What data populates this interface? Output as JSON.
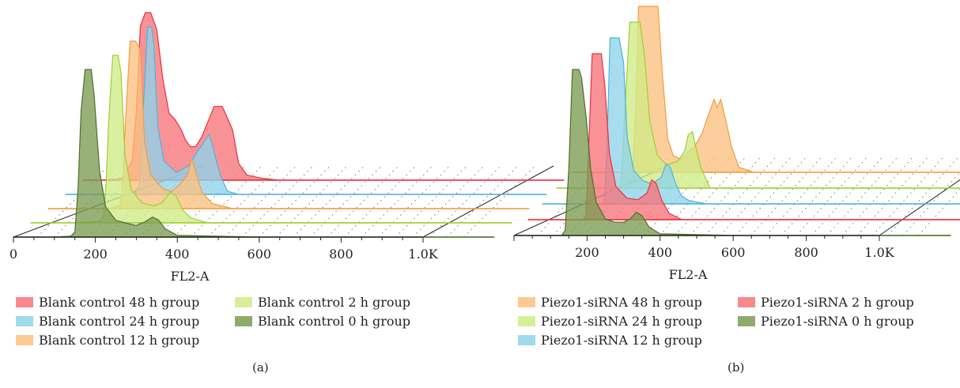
{
  "chart_data": [
    {
      "type": "area",
      "panel_label": "(a)",
      "xlabel": "FL2-A",
      "x_ticks": [
        "0",
        "200",
        "400",
        "600",
        "800",
        "1.0K"
      ],
      "x_tick_values": [
        0,
        200,
        400,
        600,
        800,
        1000
      ],
      "xlim": [
        0,
        1000
      ],
      "layout": "3d-stacked-offset",
      "series": [
        {
          "name": "Blank control 48 h group",
          "color": "#f7737a",
          "stroke": "#e8313b",
          "x": [
            0,
            40,
            80,
            100,
            120,
            130,
            140,
            152,
            165,
            180,
            195,
            210,
            225,
            240,
            250,
            262,
            275,
            290,
            300,
            320,
            340,
            365,
            380,
            400,
            440,
            480,
            520,
            560,
            600,
            700,
            800,
            1000
          ],
          "y": [
            0,
            0,
            0.5,
            2,
            12,
            40,
            92,
            100,
            100,
            90,
            60,
            40,
            36,
            30,
            24,
            20,
            20,
            26,
            32,
            44,
            44,
            30,
            10,
            3,
            1,
            0,
            0,
            0,
            0,
            0,
            0,
            0
          ]
        },
        {
          "name": "Blank control 24 h group",
          "color": "#8ed3ea",
          "stroke": "#4fb3d8",
          "x": [
            0,
            80,
            150,
            170,
            180,
            185,
            200,
            210,
            215,
            225,
            240,
            270,
            300,
            320,
            340,
            350,
            360,
            370,
            380,
            395,
            420,
            460,
            600,
            800,
            1000
          ],
          "y": [
            0,
            0,
            0,
            1,
            5,
            30,
            100,
            100,
            90,
            40,
            20,
            13,
            17,
            25,
            32,
            36,
            28,
            18,
            10,
            2,
            0,
            0,
            0,
            0,
            0
          ]
        },
        {
          "name": "Blank control 12 h group",
          "color": "#fbc080",
          "stroke": "#f59b3c",
          "x": [
            0,
            80,
            150,
            175,
            182,
            188,
            200,
            213,
            225,
            235,
            250,
            280,
            300,
            320,
            340,
            350,
            360,
            375,
            400,
            450,
            600,
            800,
            1000
          ],
          "y": [
            0,
            0,
            0,
            2,
            15,
            50,
            100,
            100,
            95,
            40,
            20,
            12,
            10,
            14,
            20,
            30,
            22,
            10,
            3,
            0,
            0,
            0,
            0
          ]
        },
        {
          "name": "Blank control 2 h group",
          "color": "#d0ec86",
          "stroke": "#9fce33",
          "x": [
            0,
            100,
            170,
            178,
            184,
            190,
            200,
            213,
            220,
            230,
            245,
            270,
            300,
            320,
            340,
            355,
            370,
            390,
            430,
            600,
            800,
            1000
          ],
          "y": [
            0,
            0,
            1,
            5,
            25,
            60,
            100,
            100,
            90,
            40,
            20,
            12,
            10,
            12,
            18,
            16,
            8,
            3,
            0,
            0,
            0,
            0
          ]
        },
        {
          "name": "Blank control 0 h group",
          "color": "#7b9b52",
          "stroke": "#4f6e2a",
          "x": [
            0,
            100,
            140,
            150,
            158,
            165,
            175,
            190,
            197,
            210,
            225,
            250,
            280,
            300,
            320,
            340,
            355,
            370,
            400,
            600,
            800,
            1000
          ],
          "y": [
            0,
            0,
            0.5,
            3,
            30,
            75,
            100,
            100,
            85,
            40,
            18,
            10,
            8,
            7,
            9,
            12,
            10,
            5,
            1,
            0,
            0,
            0
          ]
        }
      ]
    },
    {
      "type": "area",
      "panel_label": "(b)",
      "xlabel": "FL2-A",
      "x_ticks": [
        "200",
        "400",
        "600",
        "800",
        "1.0K"
      ],
      "x_tick_values": [
        200,
        400,
        600,
        800,
        1000
      ],
      "xlim": [
        0,
        1000
      ],
      "layout": "3d-stacked-offset",
      "series": [
        {
          "name": "Piezo1-siRNA 48 h group",
          "color": "#fbc080",
          "stroke": "#f59b3c",
          "x": [
            0,
            80,
            150,
            170,
            178,
            185,
            200,
            225,
            238,
            250,
            265,
            280,
            300,
            320,
            340,
            360,
            375,
            392,
            400,
            410,
            425,
            440,
            460,
            500,
            600,
            800,
            1000
          ],
          "y": [
            0,
            0,
            0,
            3,
            40,
            100,
            100,
            100,
            100,
            60,
            20,
            10,
            8,
            12,
            16,
            24,
            34,
            44,
            39,
            44,
            30,
            15,
            3,
            0,
            0,
            0,
            0
          ]
        },
        {
          "name": "Piezo1-siRNA 24 h group",
          "color": "#d0ec86",
          "stroke": "#9fce33",
          "x": [
            0,
            100,
            170,
            178,
            185,
            200,
            215,
            228,
            240,
            255,
            275,
            300,
            330,
            350,
            360,
            372,
            380,
            395,
            420,
            600,
            800,
            1000
          ],
          "y": [
            0,
            0,
            0,
            5,
            40,
            100,
            100,
            100,
            80,
            40,
            20,
            14,
            16,
            22,
            32,
            34,
            25,
            12,
            0,
            0,
            0,
            0
          ]
        },
        {
          "name": "Piezo1-siRNA 12 h group",
          "color": "#8ed3ea",
          "stroke": "#4fb3d8",
          "x": [
            0,
            100,
            165,
            170,
            176,
            185,
            195,
            210,
            222,
            232,
            250,
            275,
            300,
            325,
            338,
            350,
            365,
            380,
            400,
            450,
            600,
            800,
            1000
          ],
          "y": [
            0,
            0,
            0,
            2,
            30,
            100,
            100,
            100,
            85,
            40,
            20,
            14,
            12,
            16,
            24,
            22,
            12,
            5,
            2,
            0,
            0,
            0,
            0
          ]
        },
        {
          "name": "Piezo1-siRNA 2 h group",
          "color": "#f7737a",
          "stroke": "#e8313b",
          "x": [
            0,
            90,
            150,
            158,
            165,
            175,
            185,
            200,
            210,
            222,
            240,
            270,
            300,
            325,
            338,
            350,
            365,
            385,
            420,
            600,
            800,
            1000
          ],
          "y": [
            0,
            0,
            0,
            2,
            40,
            100,
            100,
            100,
            80,
            40,
            20,
            13,
            12,
            16,
            24,
            22,
            12,
            4,
            0,
            0,
            0,
            0
          ]
        },
        {
          "name": "Piezo1-siRNA 0 h group",
          "color": "#7b9b52",
          "stroke": "#4f6e2a",
          "x": [
            0,
            80,
            130,
            140,
            150,
            160,
            178,
            185,
            198,
            210,
            225,
            250,
            275,
            300,
            318,
            335,
            350,
            370,
            400,
            600,
            800,
            1000
          ],
          "y": [
            0,
            0,
            0,
            3,
            40,
            100,
            100,
            95,
            70,
            40,
            20,
            10,
            8,
            8,
            10,
            14,
            12,
            5,
            1,
            0,
            0,
            0
          ]
        }
      ]
    }
  ]
}
